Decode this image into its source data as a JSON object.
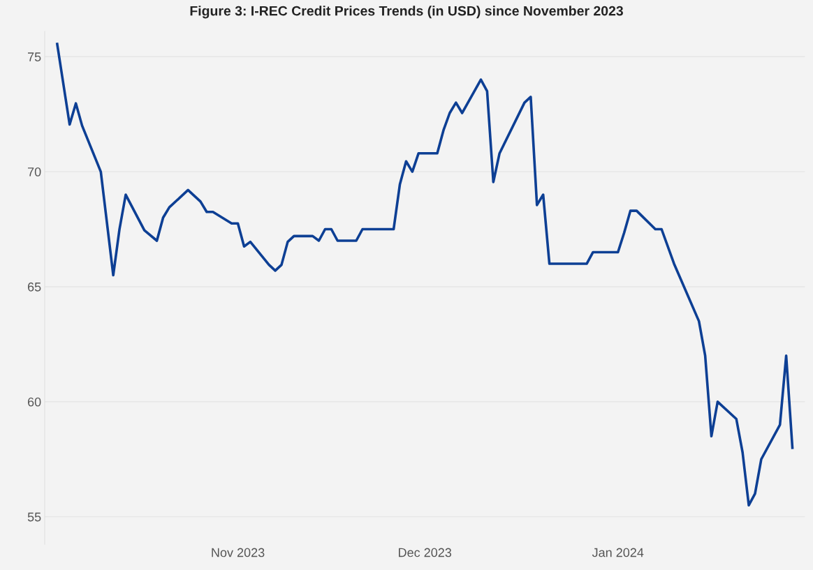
{
  "chart_data": {
    "type": "line",
    "title": "Figure 3: I-REC Credit Prices Trends (in USD) since November 2023",
    "x": [
      "2023-10-03",
      "2023-10-05",
      "2023-10-06",
      "2023-10-07",
      "2023-10-10",
      "2023-10-12",
      "2023-10-13",
      "2023-10-14",
      "2023-10-17",
      "2023-10-19",
      "2023-10-20",
      "2023-10-21",
      "2023-10-24",
      "2023-10-26",
      "2023-10-27",
      "2023-10-28",
      "2023-10-31",
      "2023-11-01",
      "2023-11-02",
      "2023-11-03",
      "2023-11-06",
      "2023-11-07",
      "2023-11-08",
      "2023-11-09",
      "2023-11-10",
      "2023-11-13",
      "2023-11-14",
      "2023-11-15",
      "2023-11-16",
      "2023-11-17",
      "2023-11-20",
      "2023-11-21",
      "2023-11-26",
      "2023-11-27",
      "2023-11-28",
      "2023-11-29",
      "2023-11-30",
      "2023-12-03",
      "2023-12-04",
      "2023-12-05",
      "2023-12-06",
      "2023-12-07",
      "2023-12-10",
      "2023-12-11",
      "2023-12-12",
      "2023-12-13",
      "2023-12-17",
      "2023-12-18",
      "2023-12-19",
      "2023-12-20",
      "2023-12-21",
      "2023-12-27",
      "2023-12-28",
      "2024-01-01",
      "2024-01-02",
      "2024-01-03",
      "2024-01-04",
      "2024-01-07",
      "2024-01-08",
      "2024-01-10",
      "2024-01-14",
      "2024-01-15",
      "2024-01-16",
      "2024-01-17",
      "2024-01-20",
      "2024-01-21",
      "2024-01-22",
      "2024-01-23",
      "2024-01-24",
      "2024-01-27",
      "2024-01-28",
      "2024-01-29"
    ],
    "series": [
      {
        "color": "#0d3f94",
        "values": [
          75.55,
          72.05,
          72.97,
          72,
          70,
          65.5,
          67.5,
          69,
          67.45,
          67,
          68,
          68.45,
          69.2,
          68.7,
          68.25,
          68.25,
          67.75,
          67.75,
          66.75,
          66.95,
          65.95,
          65.7,
          65.95,
          66.95,
          67.2,
          67.2,
          67,
          67.5,
          67.5,
          67,
          67,
          67.5,
          67.5,
          69.45,
          70.45,
          70,
          70.8,
          70.8,
          71.8,
          72.55,
          73,
          72.55,
          74,
          73.5,
          69.55,
          70.8,
          73,
          73.25,
          68.55,
          69,
          66,
          66,
          66.5,
          66.5,
          67.35,
          68.3,
          68.3,
          67.5,
          67.5,
          66,
          63.5,
          62,
          58.5,
          60,
          59.25,
          57.8,
          55.5,
          56,
          57.5,
          59,
          62,
          58
        ]
      }
    ],
    "xlim": [
      "2023-10-01",
      "2024-01-31"
    ],
    "xticks": [
      {
        "value": "2023-11-01",
        "label": "Nov 2023"
      },
      {
        "value": "2023-12-01",
        "label": "Dec 2023"
      },
      {
        "value": "2024-01-01",
        "label": "Jan 2024"
      }
    ],
    "ylim": [
      53.8,
      76.1
    ],
    "yticks": [
      55,
      60,
      65,
      70,
      75
    ],
    "grid": "y",
    "legend": false,
    "marker": "none",
    "line_style": "solid"
  }
}
